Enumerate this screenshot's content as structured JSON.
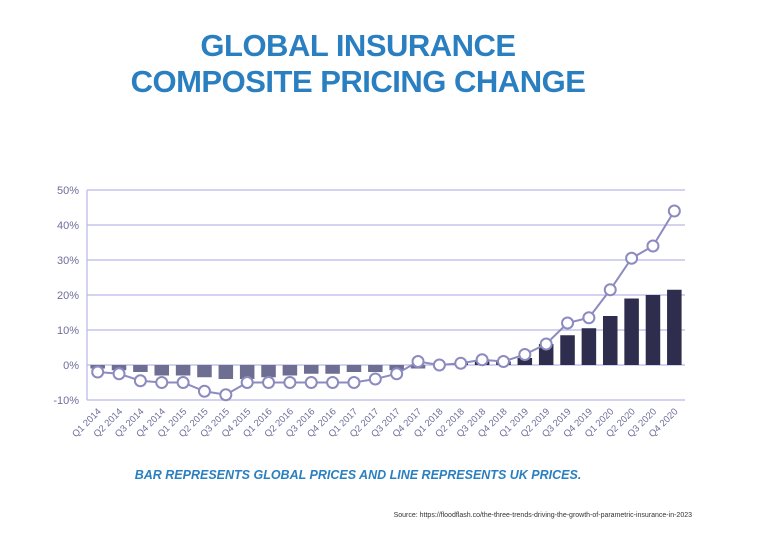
{
  "title_lines": [
    "GLOBAL INSURANCE",
    "COMPOSITE PRICING CHANGE"
  ],
  "caption": "BAR REPRESENTS GLOBAL PRICES AND LINE REPRESENTS UK PRICES.",
  "source": "Source: https://floodflash.co/the-three-trends-driving-the-growth-of-parametric-insurance-in-2023",
  "chart_data": {
    "type": "bar+line",
    "title": "GLOBAL INSURANCE COMPOSITE PRICING CHANGE",
    "ylim": [
      -10,
      50
    ],
    "yticks": [
      "-10%",
      "0%",
      "10%",
      "20%",
      "30%",
      "40%",
      "50%"
    ],
    "ytick_values": [
      -10,
      0,
      10,
      20,
      30,
      40,
      50
    ],
    "grid": true,
    "categories": [
      "Q1 2014",
      "Q2 2014",
      "Q3 2014",
      "Q4 2014",
      "Q1 2015",
      "Q2 2015",
      "Q3 2015",
      "Q4 2015",
      "Q1 2016",
      "Q2 2016",
      "Q3 2016",
      "Q4 2016",
      "Q1 2017",
      "Q2 2017",
      "Q3 2017",
      "Q4 2017",
      "Q1 2018",
      "Q2 2018",
      "Q3 2018",
      "Q4 2018",
      "Q1 2019",
      "Q2 2019",
      "Q3 2019",
      "Q4 2019",
      "Q1 2020",
      "Q2 2020",
      "Q3 2020",
      "Q4 2020"
    ],
    "series": [
      {
        "kind": "bar",
        "color": "#2e2d4d",
        "negative_color": "#6e6d92",
        "values": [
          -1,
          -1.5,
          -2,
          -3,
          -3,
          -3.5,
          -4,
          -4,
          -3.5,
          -3,
          -2.5,
          -2.5,
          -2,
          -2,
          -1.5,
          -1,
          0,
          0.5,
          1,
          1,
          2,
          6,
          8.5,
          10.5,
          14,
          19,
          20,
          21.5
        ]
      },
      {
        "kind": "line",
        "color": "#8c8bc0",
        "values": [
          -2,
          -2.5,
          -4.5,
          -5,
          -5,
          -7.5,
          -8.5,
          -5,
          -5,
          -5,
          -5,
          -5,
          -5,
          -4,
          -2.5,
          1,
          0,
          0.5,
          1.5,
          1,
          3,
          6,
          12,
          13.5,
          21.5,
          30.5,
          34,
          44
        ]
      }
    ],
    "colors": {
      "title": "#2a7fc0",
      "axis": "#b9b8e6",
      "tick_text": "#6e6d9a"
    }
  }
}
